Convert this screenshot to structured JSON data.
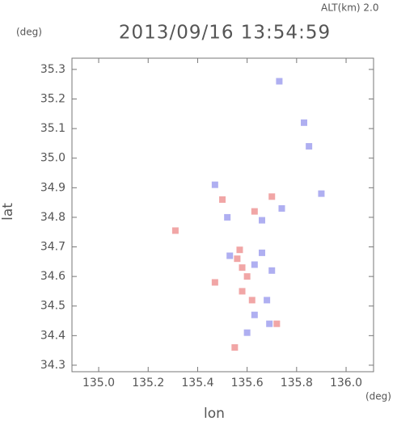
{
  "chart_data": {
    "type": "scatter",
    "title": "2013/09/16 13:54:59",
    "subtitle": "ALT(km)  2.0",
    "y_unit": "(deg)",
    "x_unit": "(deg)",
    "xlabel": "lon",
    "ylabel": "lat",
    "xlim": [
      134.892,
      136.111
    ],
    "ylim": [
      34.278,
      35.338
    ],
    "xticks": [
      {
        "value": 135,
        "label": "135.0"
      },
      135.2,
      135.4,
      135.6,
      135.8,
      {
        "value": 136,
        "label": "136.0"
      }
    ],
    "yticks": [
      34.3,
      34.4,
      34.5,
      34.6,
      34.7,
      34.8,
      34.9,
      {
        "value": 35,
        "label": "35.0"
      },
      35.1,
      35.2,
      35.3
    ],
    "series": [
      {
        "color": "#e86a6a",
        "x": [
          135.31,
          135.5,
          135.63,
          135.7,
          135.56,
          135.6,
          135.58,
          135.62,
          135.57,
          135.72,
          135.47,
          135.55,
          135.58
        ],
        "y": [
          34.755,
          34.86,
          34.82,
          34.87,
          34.66,
          34.6,
          34.55,
          34.52,
          34.69,
          34.44,
          34.58,
          34.36,
          34.63
        ]
      },
      {
        "color": "#7a7ae8",
        "x": [
          135.73,
          135.83,
          135.85,
          135.47,
          135.52,
          135.66,
          135.66,
          135.7,
          135.63,
          135.53,
          135.9,
          135.74,
          135.63,
          135.68,
          135.69,
          135.6
        ],
        "y": [
          35.26,
          35.12,
          35.04,
          34.91,
          34.8,
          34.79,
          34.68,
          34.62,
          34.64,
          34.67,
          34.88,
          34.83,
          34.47,
          34.52,
          34.44,
          34.41
        ]
      }
    ]
  }
}
